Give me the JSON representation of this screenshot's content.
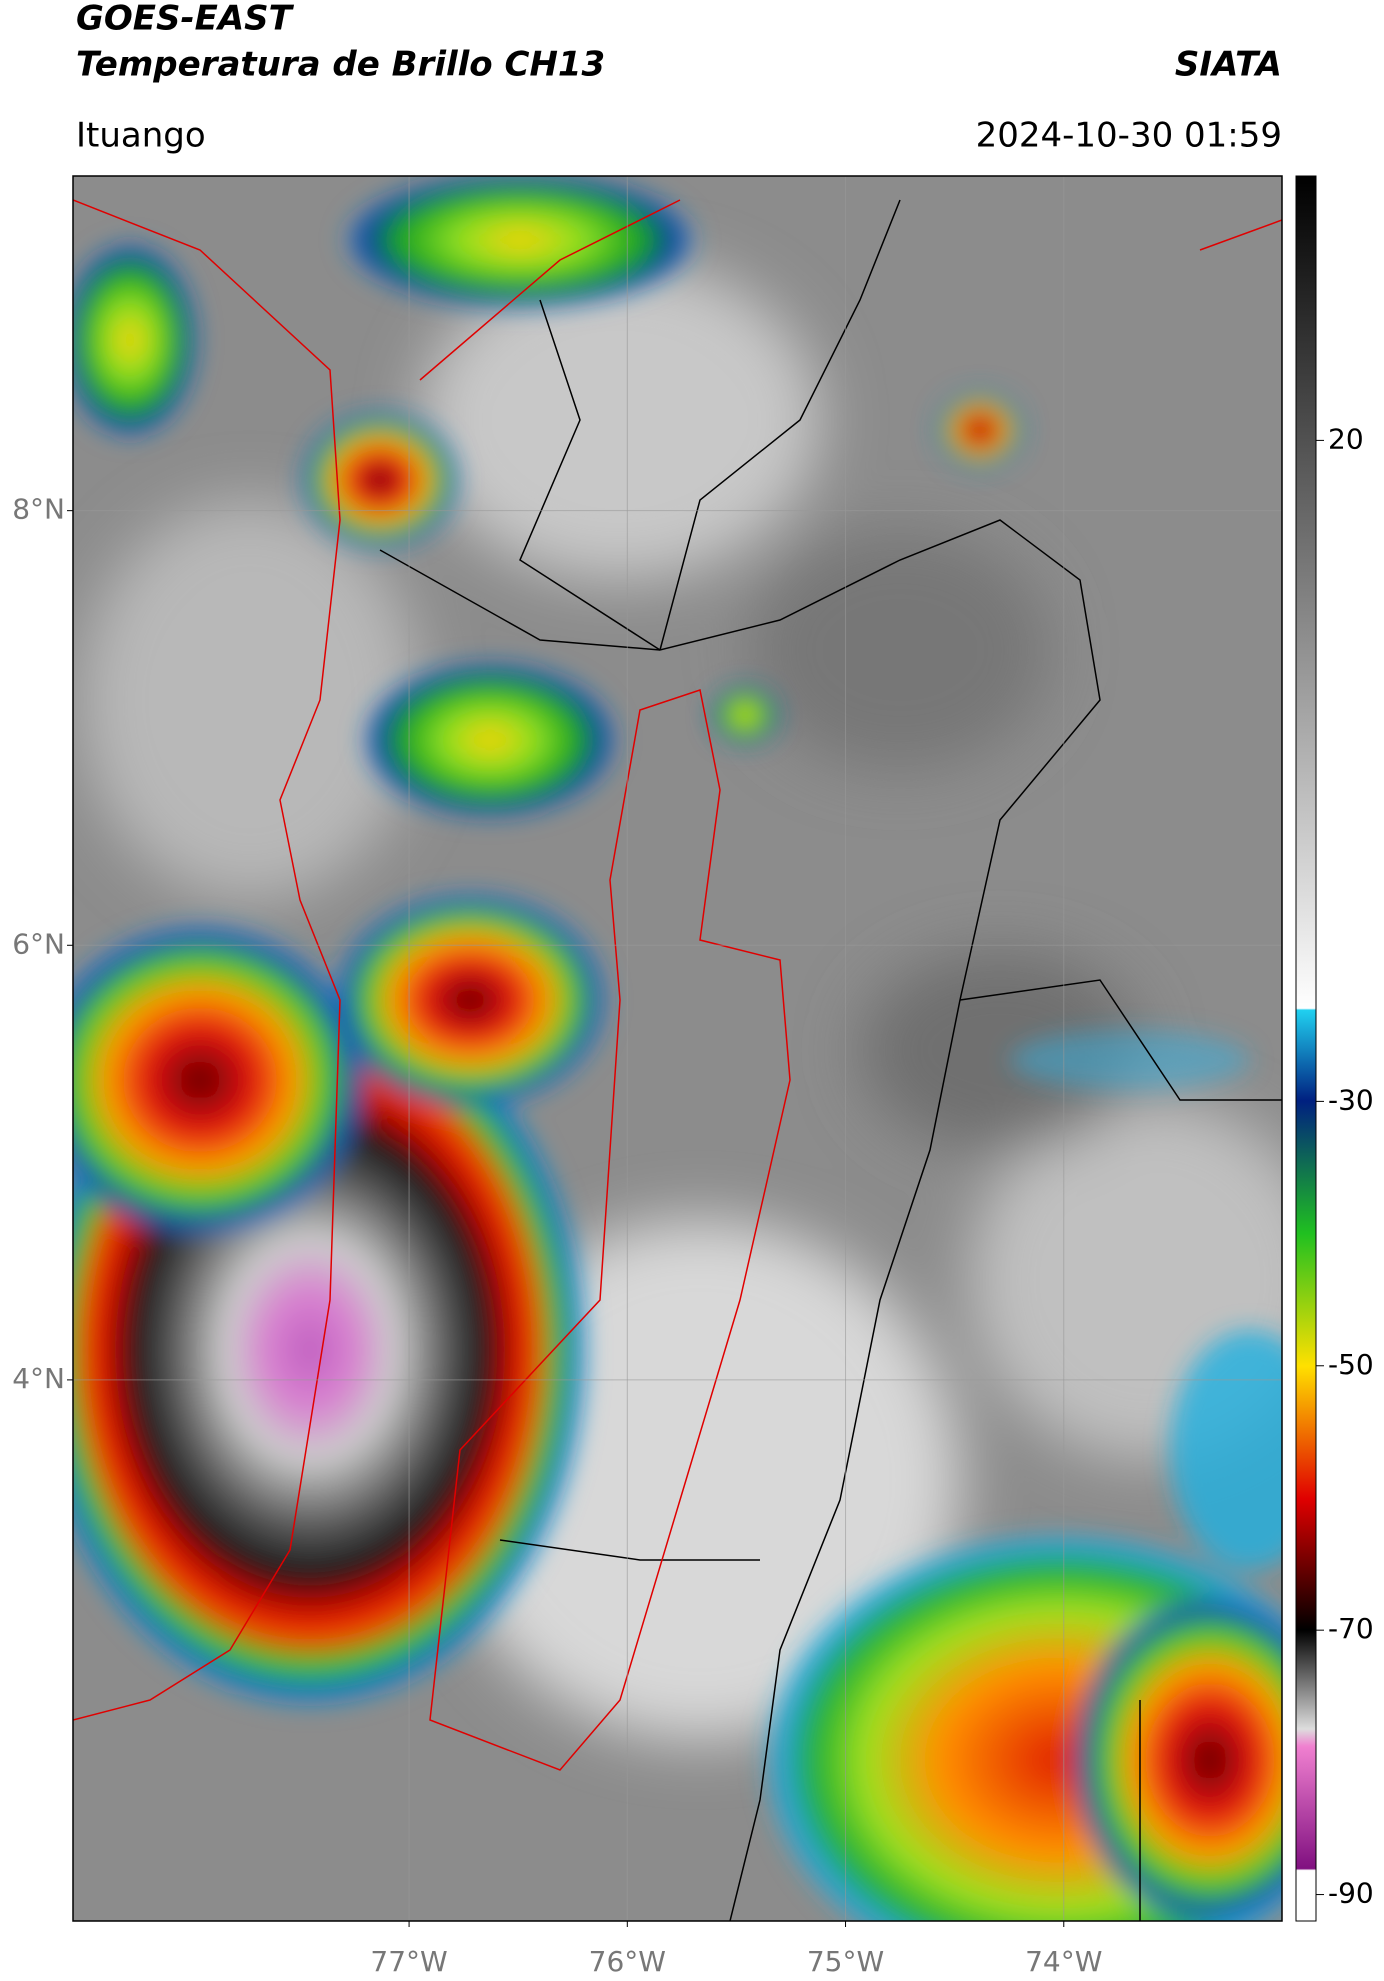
{
  "header": {
    "title": "GOES-EAST",
    "subtitle": "Temperatura de Brillo CH13",
    "organization": "SIATA",
    "location": "Ituango",
    "datetime": "2024-10-30 01:59"
  },
  "map": {
    "xlim": [
      -78.54,
      -73.0
    ],
    "ylim": [
      1.51,
      9.54
    ],
    "xticks": [
      {
        "value": -77,
        "label": "77°W"
      },
      {
        "value": -76,
        "label": "76°W"
      },
      {
        "value": -75,
        "label": "75°W"
      },
      {
        "value": -74,
        "label": "74°W"
      }
    ],
    "yticks": [
      {
        "value": 8,
        "label": "8°N"
      },
      {
        "value": 6,
        "label": "6°N"
      },
      {
        "value": 4,
        "label": "4°N"
      }
    ],
    "grid": true
  },
  "colorbar": {
    "lim": [
      -92,
      40
    ],
    "ticks": [
      20,
      -30,
      -50,
      -70,
      -90
    ]
  }
}
